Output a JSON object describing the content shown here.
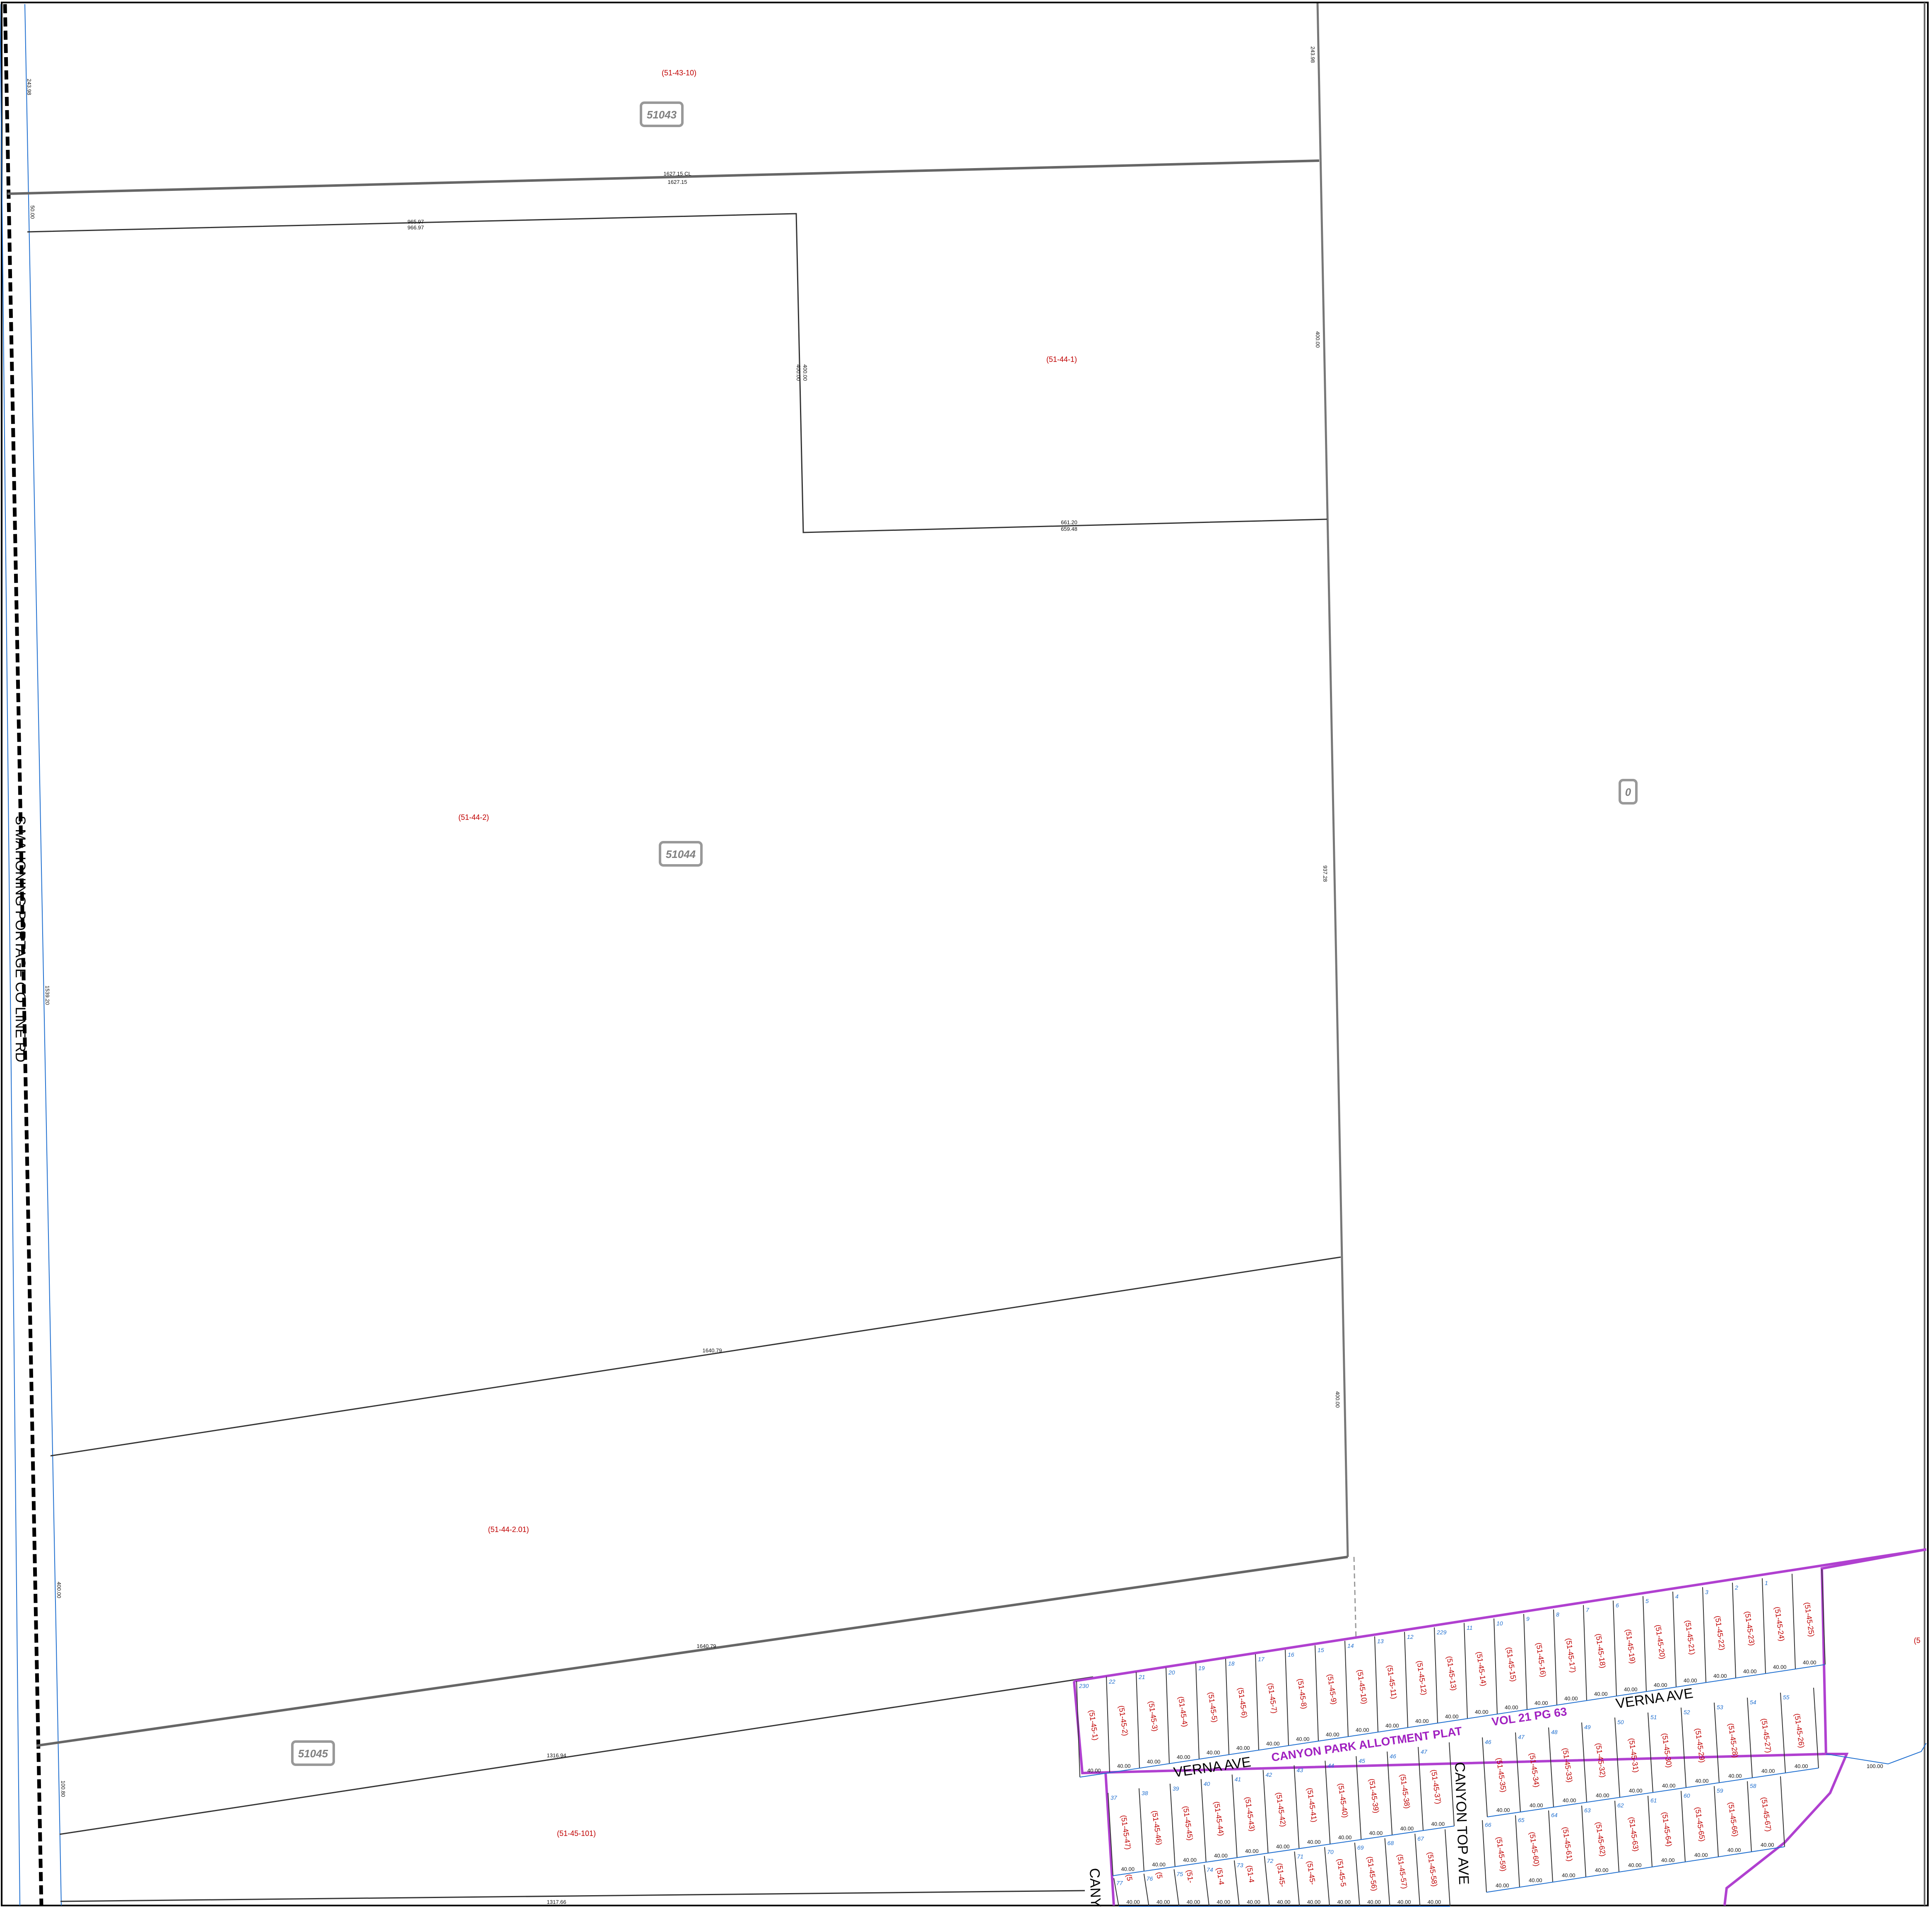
{
  "map": {
    "road_label": "S MAHONING PORTAGE CO LINE RD",
    "map_numbers": [
      "51043",
      "51044",
      "51045",
      "0"
    ],
    "parcel_ids": [
      "(51-43-10)",
      "(51-44-1)",
      "(51-44-2)",
      "(51-44-2.01)",
      "(51-45-101)"
    ],
    "dimensions": {
      "top_cl": "1627.15 CL",
      "top": "1627.15",
      "d965": "965.97",
      "d966": "966.97",
      "d40000": "400.00",
      "d40000b": "400.00",
      "d661": "661.20",
      "d659": "659.48",
      "d1640a": "1640.79",
      "d1640b": "1640.79",
      "d1316": "1316.94",
      "d1317": "1317.66",
      "left_243": "243.98",
      "left_5000": "50.00",
      "left_1539": "1539.20",
      "left_400": "400.00",
      "left_100": "100.80",
      "right_243": "243.98",
      "right_400": "400.00",
      "right_937": "937.28",
      "right_400b": "400.00",
      "d100": "100.00"
    },
    "subdivision": {
      "plat_name": "CANYON PARK ALLOTMENT PLAT",
      "vol": "VOL 21 PG 63",
      "street_verna_1": "VERNA AVE",
      "street_verna_2": "VERNA AVE",
      "street_canyon_top": "CANYON TOP AVE",
      "street_canyon_cut": "CANY"
    }
  },
  "top_row_lots": [
    {
      "lot": "230",
      "pid": "(51-45-1)"
    },
    {
      "lot": "22",
      "pid": "(51-45-2)"
    },
    {
      "lot": "21",
      "pid": "(51-45-3)"
    },
    {
      "lot": "20",
      "pid": "(51-45-4)"
    },
    {
      "lot": "19",
      "pid": "(51-45-5)"
    },
    {
      "lot": "18",
      "pid": "(51-45-6)"
    },
    {
      "lot": "17",
      "pid": "(51-45-7)"
    },
    {
      "lot": "16",
      "pid": "(51-45-8)"
    },
    {
      "lot": "15",
      "pid": "(51-45-9)"
    },
    {
      "lot": "14",
      "pid": "(51-45-10)"
    },
    {
      "lot": "13",
      "pid": "(51-45-11)"
    },
    {
      "lot": "12",
      "pid": "(51-45-12)"
    },
    {
      "lot": "229",
      "pid": "(51-45-13)"
    },
    {
      "lot": "11",
      "pid": "(51-45-14)"
    },
    {
      "lot": "10",
      "pid": "(51-45-15)"
    },
    {
      "lot": "9",
      "pid": "(51-45-16)"
    },
    {
      "lot": "8",
      "pid": "(51-45-17)"
    },
    {
      "lot": "7",
      "pid": "(51-45-18)"
    },
    {
      "lot": "6",
      "pid": "(51-45-19)"
    },
    {
      "lot": "5",
      "pid": "(51-45-20)"
    },
    {
      "lot": "4",
      "pid": "(51-45-21)"
    },
    {
      "lot": "3",
      "pid": "(51-45-22)"
    },
    {
      "lot": "2",
      "pid": "(51-45-23)"
    },
    {
      "lot": "1",
      "pid": "(51-45-24)"
    },
    {
      "lot": "",
      "pid": "(51-45-25)"
    }
  ],
  "mid_row_lots": [
    {
      "lot": "37",
      "pid": "(51-45-47)"
    },
    {
      "lot": "38",
      "pid": "(51-45-46)"
    },
    {
      "lot": "39",
      "pid": "(51-45-45)"
    },
    {
      "lot": "40",
      "pid": "(51-45-44)"
    },
    {
      "lot": "41",
      "pid": "(51-45-43)"
    },
    {
      "lot": "42",
      "pid": "(51-45-42)"
    },
    {
      "lot": "43",
      "pid": "(51-45-41)"
    },
    {
      "lot": "44",
      "pid": "(51-45-40)"
    },
    {
      "lot": "45",
      "pid": "(51-45-39)"
    },
    {
      "lot": "46",
      "pid": "(51-45-38)"
    },
    {
      "lot": "47",
      "pid": "(51-45-37)"
    }
  ],
  "right_block_lots": [
    {
      "lot": "46",
      "pid": "(51-45-35)"
    },
    {
      "lot": "47",
      "pid": "(51-45-34)"
    },
    {
      "lot": "48",
      "pid": "(51-45-33)"
    },
    {
      "lot": "49",
      "pid": "(51-45-32)"
    },
    {
      "lot": "50",
      "pid": "(51-45-31)"
    },
    {
      "lot": "51",
      "pid": "(51-45-30)"
    },
    {
      "lot": "52",
      "pid": "(51-45-29)"
    },
    {
      "lot": "53",
      "pid": "(51-45-28)"
    },
    {
      "lot": "54",
      "pid": "(51-45-27)"
    },
    {
      "lot": "55",
      "pid": "(51-45-26)"
    }
  ],
  "lower_right_lots": [
    {
      "lot": "66",
      "pid": "(51-45-59)"
    },
    {
      "lot": "65",
      "pid": "(51-45-60)"
    },
    {
      "lot": "64",
      "pid": "(51-45-61)"
    },
    {
      "lot": "63",
      "pid": "(51-45-62)"
    },
    {
      "lot": "62",
      "pid": "(51-45-63)"
    },
    {
      "lot": "61",
      "pid": "(51-45-64)"
    },
    {
      "lot": "60",
      "pid": "(51-45-65)"
    },
    {
      "lot": "59",
      "pid": "(51-45-66)"
    },
    {
      "lot": "58",
      "pid": "(51-45-67)"
    }
  ],
  "lower_left_lots": [
    {
      "lot": "77",
      "pid": "(5"
    },
    {
      "lot": "76",
      "pid": "(5"
    },
    {
      "lot": "75",
      "pid": "(51-"
    },
    {
      "lot": "74",
      "pid": "(51-4"
    },
    {
      "lot": "73",
      "pid": "(51-4"
    },
    {
      "lot": "72",
      "pid": "(51-45-"
    },
    {
      "lot": "71",
      "pid": "(51-45-"
    },
    {
      "lot": "70",
      "pid": "(51-45-5"
    },
    {
      "lot": "69",
      "pid": "(51-45-56)"
    },
    {
      "lot": "68",
      "pid": "(51-45-57)"
    },
    {
      "lot": "67",
      "pid": "(51-45-58)"
    }
  ],
  "lot_width": "40.00",
  "edge_pid": "(5"
}
